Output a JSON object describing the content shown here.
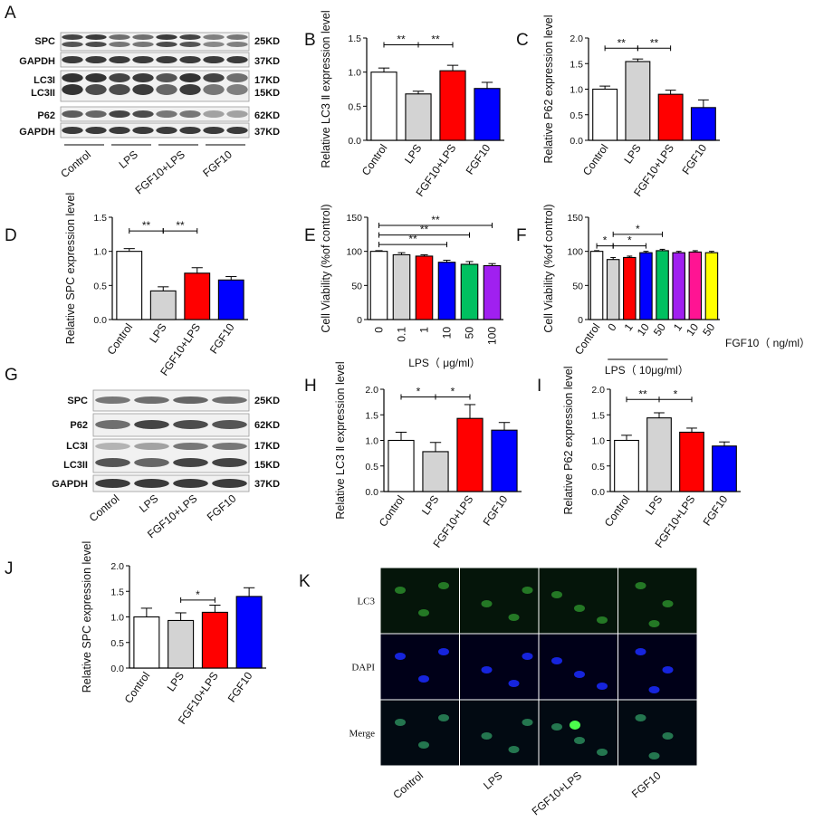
{
  "colors": {
    "white": "#ffffff",
    "gray": "#d3d3d3",
    "red": "#ff0000",
    "blue": "#0000ff",
    "green": "#00c060",
    "purple": "#a020f0",
    "magenta": "#ff1493",
    "yellow": "#ffff00"
  },
  "blots": {
    "A": {
      "letter": "A",
      "labels": [
        "SPC",
        "GAPDH",
        "LC3I",
        "LC3II",
        "P62",
        "GAPDH"
      ],
      "sizes": [
        "25KD",
        "37KD",
        "17KD",
        "15KD",
        "62KD",
        "37KD"
      ],
      "groups": [
        "Control",
        "LPS",
        "FGF10+LPS",
        "FGF10"
      ]
    },
    "G": {
      "letter": "G",
      "labels": [
        "SPC",
        "P62",
        "LC3I",
        "LC3II",
        "GAPDH"
      ],
      "sizes": [
        "25KD",
        "62KD",
        "17KD",
        "15KD",
        "37KD"
      ],
      "groups": [
        "Control",
        "LPS",
        "FGF10+LPS",
        "FGF10"
      ]
    }
  },
  "micrograph": {
    "letter": "K",
    "rows": [
      "LC3",
      "DAPI",
      "Merge"
    ],
    "columns": [
      "Control",
      "LPS",
      "FGF10+LPS",
      "FGF10"
    ]
  },
  "chart_data": [
    {
      "panel": "B",
      "type": "bar",
      "ylabel": "Relative LC3 Ⅱ expression level",
      "ylim": [
        0,
        1.5
      ],
      "yticks": [
        "0.0",
        "0.5",
        "1.0",
        "1.5"
      ],
      "categories": [
        "Control",
        "LPS",
        "FGF10+LPS",
        "FGF10"
      ],
      "values": [
        1.0,
        0.68,
        1.02,
        0.76
      ],
      "errors": [
        0.06,
        0.04,
        0.08,
        0.09
      ],
      "bar_colors": [
        "white",
        "gray",
        "red",
        "blue"
      ],
      "significance": [
        {
          "from": 0,
          "to": 1,
          "label": "**",
          "y": 1.4
        },
        {
          "from": 1,
          "to": 2,
          "label": "**",
          "y": 1.4
        }
      ]
    },
    {
      "panel": "C",
      "type": "bar",
      "ylabel": "Relative P62 expression level",
      "ylim": [
        0,
        2.0
      ],
      "yticks": [
        "0.0",
        "0.5",
        "1.0",
        "1.5",
        "2.0"
      ],
      "categories": [
        "Control",
        "LPS",
        "FGF10+LPS",
        "FGF10"
      ],
      "values": [
        1.0,
        1.54,
        0.9,
        0.64
      ],
      "errors": [
        0.06,
        0.05,
        0.08,
        0.15
      ],
      "bar_colors": [
        "white",
        "gray",
        "red",
        "blue"
      ],
      "significance": [
        {
          "from": 0,
          "to": 1,
          "label": "**",
          "y": 1.8
        },
        {
          "from": 1,
          "to": 2,
          "label": "**",
          "y": 1.8
        }
      ]
    },
    {
      "panel": "D",
      "type": "bar",
      "ylabel": "Relative SPC expression level",
      "ylim": [
        0,
        1.5
      ],
      "yticks": [
        "0.0",
        "0.5",
        "1.0",
        "1.5"
      ],
      "categories": [
        "Control",
        "LPS",
        "FGF10+LPS",
        "FGF10"
      ],
      "values": [
        1.0,
        0.42,
        0.68,
        0.58
      ],
      "errors": [
        0.04,
        0.06,
        0.08,
        0.05
      ],
      "bar_colors": [
        "white",
        "gray",
        "red",
        "blue"
      ],
      "significance": [
        {
          "from": 0,
          "to": 1,
          "label": "**",
          "y": 1.3
        },
        {
          "from": 1,
          "to": 2,
          "label": "**",
          "y": 1.3
        }
      ]
    },
    {
      "panel": "E",
      "type": "bar",
      "ylabel": "Cell Viability (%of control)",
      "xlabel": "LPS（ μg/ml）",
      "ylim": [
        0,
        150
      ],
      "yticks": [
        "0",
        "50",
        "100",
        "150"
      ],
      "categories": [
        "0",
        "0.1",
        "1",
        "10",
        "50",
        "100"
      ],
      "values": [
        100,
        95,
        93,
        84,
        81,
        79
      ],
      "errors": [
        1,
        3,
        2,
        3,
        4,
        3
      ],
      "bar_colors": [
        "white",
        "gray",
        "red",
        "blue",
        "green",
        "purple"
      ],
      "significance": [
        {
          "from": 0,
          "to": 3,
          "label": "**",
          "y": 110
        },
        {
          "from": 0,
          "to": 4,
          "label": "**",
          "y": 124
        },
        {
          "from": 0,
          "to": 5,
          "label": "**",
          "y": 138
        }
      ]
    },
    {
      "panel": "F",
      "type": "bar",
      "ylabel": "Cell Viability (%of control)",
      "xlabel": "FGF10（ ng/ml）",
      "group_label": "LPS（ 10μg/ml）",
      "ylim": [
        0,
        150
      ],
      "yticks": [
        "0",
        "50",
        "100",
        "150"
      ],
      "categories": [
        "Control",
        "0",
        "1",
        "10",
        "50",
        "1",
        "10",
        "50"
      ],
      "values": [
        100,
        88,
        91,
        98,
        101,
        98,
        99,
        98
      ],
      "errors": [
        1,
        3,
        2,
        2,
        2,
        2,
        2,
        2
      ],
      "bar_colors": [
        "white",
        "gray",
        "red",
        "blue",
        "green",
        "purple",
        "magenta",
        "yellow"
      ],
      "significance": [
        {
          "from": 0,
          "to": 1,
          "label": "*",
          "y": 108
        },
        {
          "from": 1,
          "to": 3,
          "label": "*",
          "y": 108
        },
        {
          "from": 1,
          "to": 4,
          "label": "*",
          "y": 125
        }
      ]
    },
    {
      "panel": "H",
      "type": "bar",
      "ylabel": "Relative LC3 Ⅱ expression level",
      "ylim": [
        0,
        2.0
      ],
      "yticks": [
        "0.0",
        "0.5",
        "1.0",
        "1.5",
        "2.0"
      ],
      "categories": [
        "Control",
        "LPS",
        "FGF10+LPS",
        "FGF10"
      ],
      "values": [
        1.0,
        0.78,
        1.43,
        1.2
      ],
      "errors": [
        0.16,
        0.18,
        0.27,
        0.15
      ],
      "bar_colors": [
        "white",
        "gray",
        "red",
        "blue"
      ],
      "significance": [
        {
          "from": 0,
          "to": 1,
          "label": "*",
          "y": 1.85
        },
        {
          "from": 1,
          "to": 2,
          "label": "*",
          "y": 1.85
        }
      ]
    },
    {
      "panel": "I",
      "type": "bar",
      "ylabel": "Relative P62 expression level",
      "ylim": [
        0,
        2.0
      ],
      "yticks": [
        "0.0",
        "0.5",
        "1.0",
        "1.5",
        "2.0"
      ],
      "categories": [
        "Control",
        "LPS",
        "FGF10+LPS",
        "FGF10"
      ],
      "values": [
        1.0,
        1.44,
        1.16,
        0.89
      ],
      "errors": [
        0.1,
        0.1,
        0.08,
        0.08
      ],
      "bar_colors": [
        "white",
        "gray",
        "red",
        "blue"
      ],
      "significance": [
        {
          "from": 0,
          "to": 1,
          "label": "**",
          "y": 1.8
        },
        {
          "from": 1,
          "to": 2,
          "label": "*",
          "y": 1.8
        }
      ]
    },
    {
      "panel": "J",
      "type": "bar",
      "ylabel": "Relative SPC expression level",
      "ylim": [
        0,
        2.0
      ],
      "yticks": [
        "0.0",
        "0.5",
        "1.0",
        "1.5",
        "2.0"
      ],
      "categories": [
        "Control",
        "LPS",
        "FGF10+LPS",
        "FGF10"
      ],
      "values": [
        1.0,
        0.93,
        1.09,
        1.4
      ],
      "errors": [
        0.17,
        0.15,
        0.14,
        0.17
      ],
      "bar_colors": [
        "white",
        "gray",
        "red",
        "blue"
      ],
      "significance": [
        {
          "from": 1,
          "to": 2,
          "label": "*",
          "y": 1.33
        }
      ]
    }
  ]
}
